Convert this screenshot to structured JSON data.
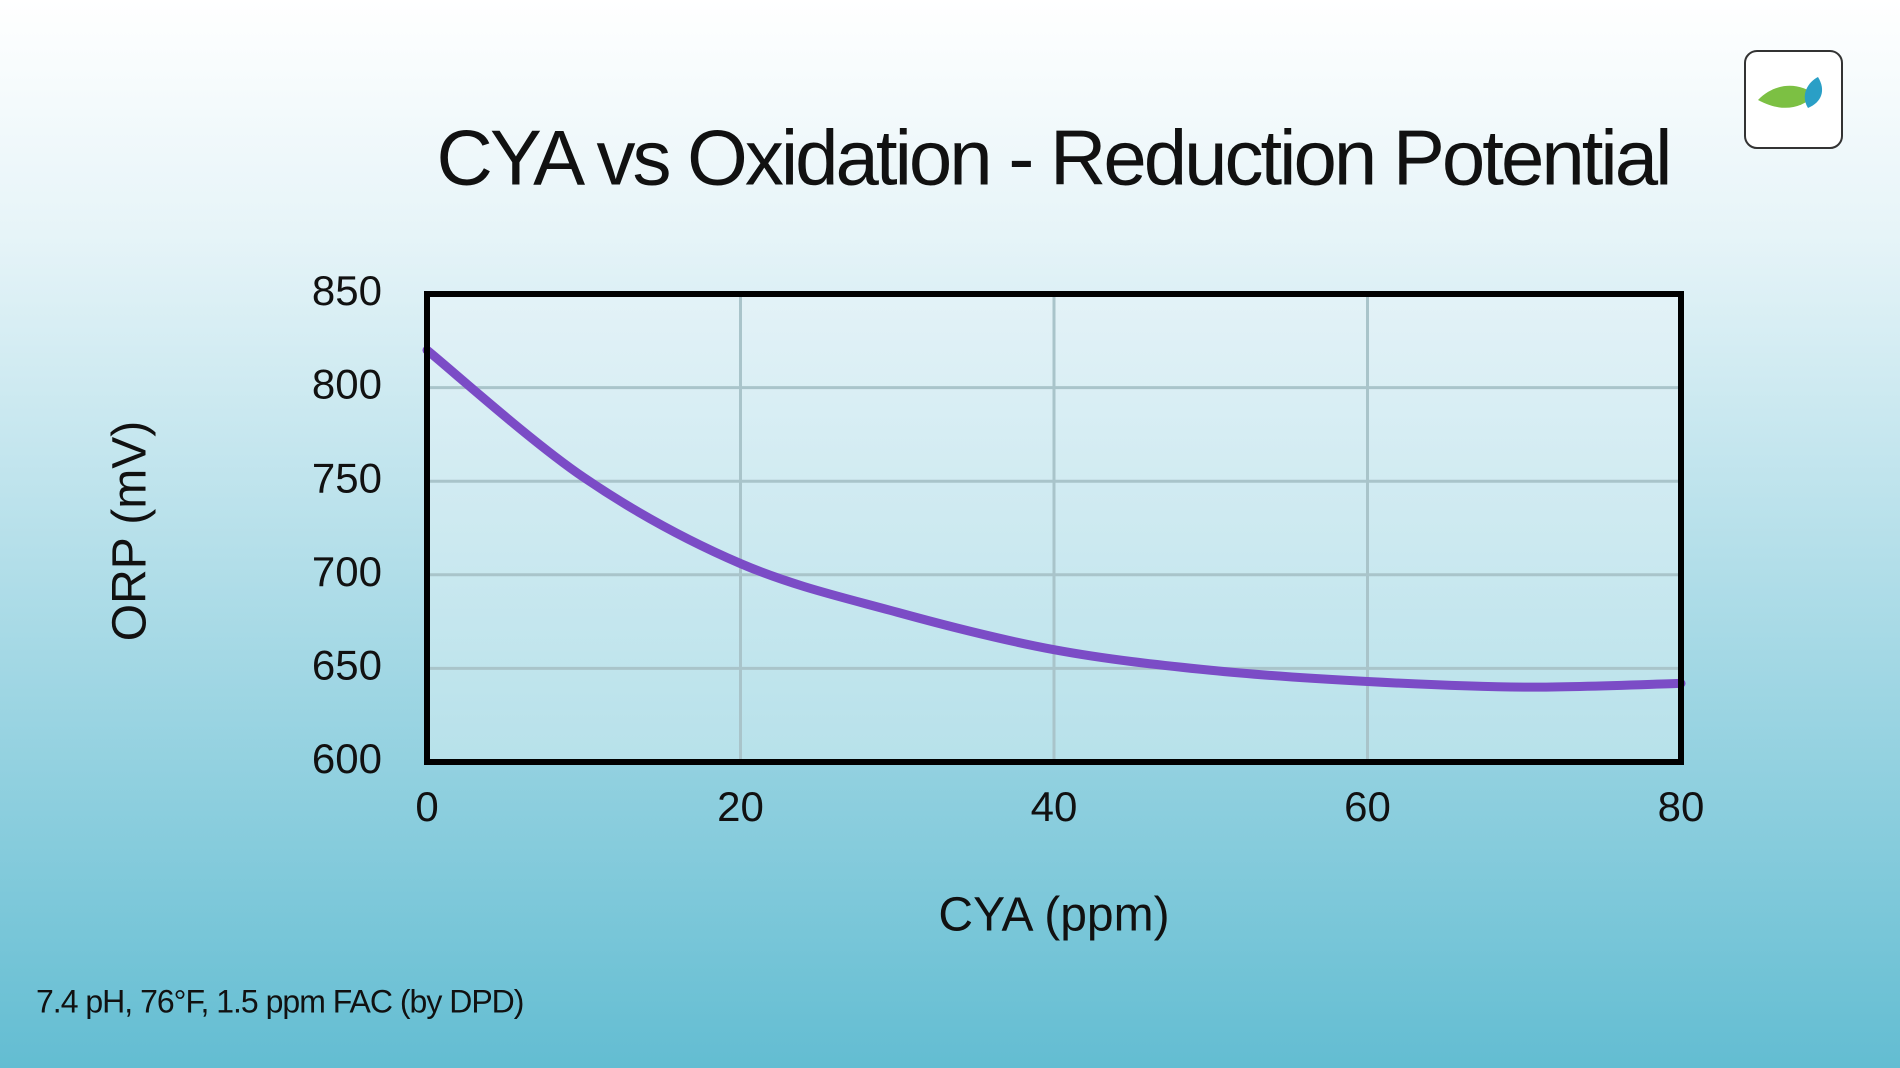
{
  "chart_data": {
    "type": "line",
    "title": "CYA vs Oxidation - Reduction Potential",
    "x_label": "CYA  (ppm)",
    "y_label": "ORP (mV)",
    "annotation": "7.4 pH, 76°F, 1.5 ppm FAC (by DPD)",
    "x": [
      0,
      10,
      20,
      30,
      40,
      50,
      60,
      70,
      80
    ],
    "series": [
      {
        "color": "#7b4cc6",
        "values": [
          820,
          752,
          706,
          680,
          660,
          649,
          643,
          640,
          642
        ]
      }
    ],
    "xlim": [
      0,
      80
    ],
    "xticks": [
      0,
      20,
      40,
      60,
      80
    ],
    "ylim": [
      600,
      850
    ],
    "yticks": [
      600,
      650,
      700,
      750,
      800,
      850
    ],
    "grid": true
  }
}
